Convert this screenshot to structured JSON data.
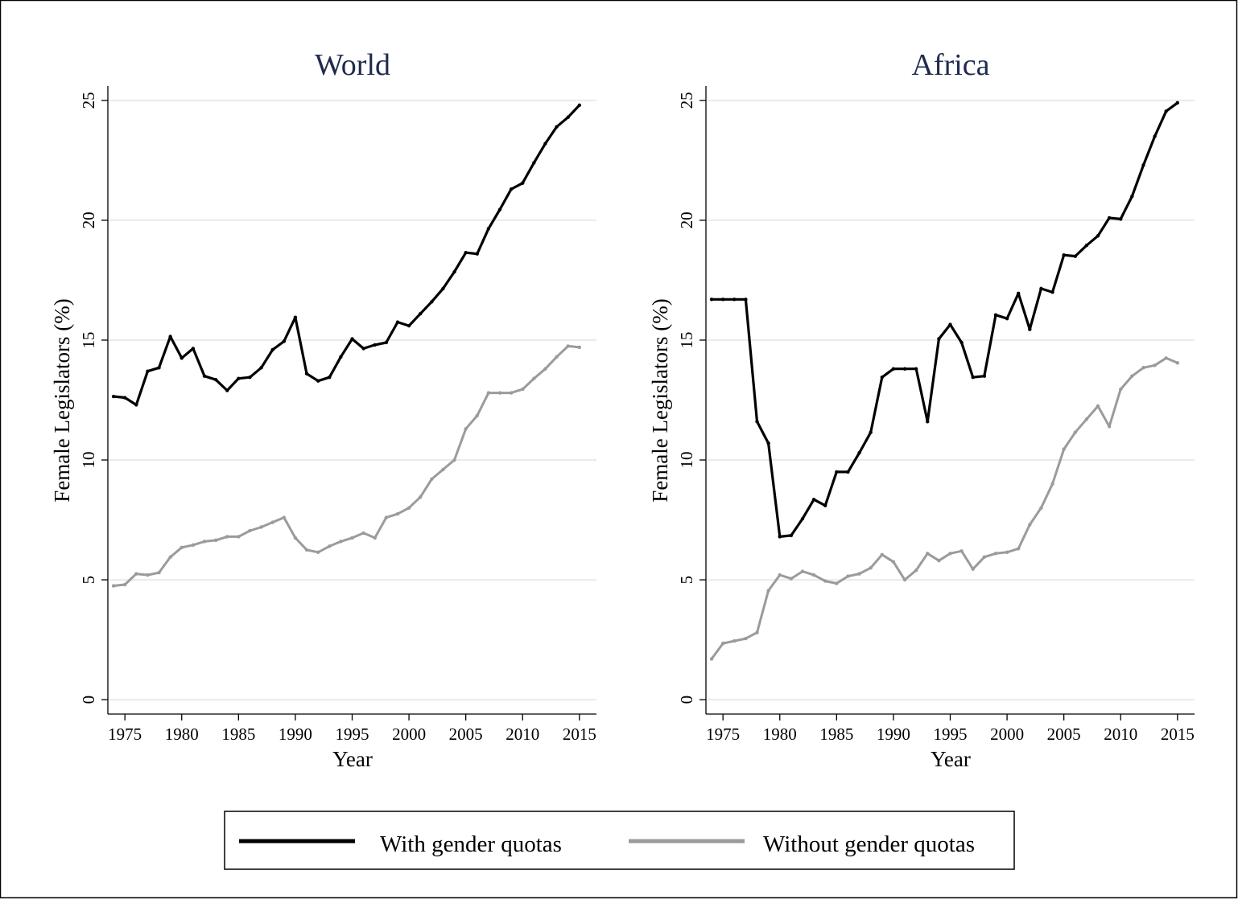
{
  "colors": {
    "with_quotas": "#000000",
    "without_quotas": "#9b9b9b",
    "gridline": "#e4ecef",
    "title": "#1f2a4d"
  },
  "legend": {
    "items": [
      {
        "label": "With gender quotas",
        "color": "#000000"
      },
      {
        "label": "Without gender quotas",
        "color": "#9b9b9b"
      }
    ]
  },
  "chart_data": [
    {
      "type": "line",
      "title": "World",
      "xlabel": "Year",
      "ylabel": "Female Legislators (%)",
      "xlim": [
        1973.5,
        2016.5
      ],
      "ylim": [
        -0.6,
        25.6
      ],
      "xticks": [
        1975,
        1980,
        1985,
        1990,
        1995,
        2000,
        2005,
        2010,
        2015
      ],
      "yticks": [
        0,
        5,
        10,
        15,
        20,
        25
      ],
      "grid": true,
      "x": [
        1974,
        1975,
        1976,
        1977,
        1978,
        1979,
        1980,
        1981,
        1982,
        1983,
        1984,
        1985,
        1986,
        1987,
        1988,
        1989,
        1990,
        1991,
        1992,
        1993,
        1994,
        1995,
        1996,
        1997,
        1998,
        1999,
        2000,
        2001,
        2002,
        2003,
        2004,
        2005,
        2006,
        2007,
        2008,
        2009,
        2010,
        2011,
        2012,
        2013,
        2014,
        2015
      ],
      "series": [
        {
          "name": "With gender quotas",
          "values": [
            12.65,
            12.6,
            12.3,
            13.7,
            13.85,
            15.15,
            14.25,
            14.65,
            13.5,
            13.35,
            12.9,
            13.4,
            13.45,
            13.85,
            14.6,
            14.95,
            15.95,
            13.6,
            13.3,
            13.45,
            14.3,
            15.05,
            14.65,
            14.8,
            14.9,
            15.75,
            15.6,
            16.1,
            16.6,
            17.15,
            17.85,
            18.65,
            18.6,
            19.65,
            20.45,
            21.3,
            21.55,
            22.4,
            23.2,
            23.9,
            24.3,
            24.8
          ]
        },
        {
          "name": "Without gender quotas",
          "values": [
            4.75,
            4.8,
            5.25,
            5.2,
            5.3,
            5.95,
            6.35,
            6.45,
            6.6,
            6.65,
            6.8,
            6.8,
            7.05,
            7.2,
            7.4,
            7.6,
            6.75,
            6.25,
            6.15,
            6.4,
            6.6,
            6.75,
            6.95,
            6.75,
            7.6,
            7.75,
            8.0,
            8.45,
            9.2,
            9.6,
            10.0,
            11.3,
            11.85,
            12.8,
            12.8,
            12.8,
            12.95,
            13.4,
            13.8,
            14.3,
            14.75,
            14.7
          ]
        }
      ]
    },
    {
      "type": "line",
      "title": "Africa",
      "xlabel": "Year",
      "ylabel": "Female Legislators (%)",
      "xlim": [
        1973.5,
        2016.5
      ],
      "ylim": [
        -0.6,
        25.6
      ],
      "xticks": [
        1975,
        1980,
        1985,
        1990,
        1995,
        2000,
        2005,
        2010,
        2015
      ],
      "yticks": [
        0,
        5,
        10,
        15,
        20,
        25
      ],
      "grid": true,
      "x": [
        1974,
        1975,
        1976,
        1977,
        1978,
        1979,
        1980,
        1981,
        1982,
        1983,
        1984,
        1985,
        1986,
        1987,
        1988,
        1989,
        1990,
        1991,
        1992,
        1993,
        1994,
        1995,
        1996,
        1997,
        1998,
        1999,
        2000,
        2001,
        2002,
        2003,
        2004,
        2005,
        2006,
        2007,
        2008,
        2009,
        2010,
        2011,
        2012,
        2013,
        2014,
        2015
      ],
      "series": [
        {
          "name": "With gender quotas",
          "values": [
            16.7,
            16.7,
            16.7,
            16.7,
            11.6,
            10.7,
            6.8,
            6.85,
            7.55,
            8.35,
            8.1,
            9.5,
            9.5,
            10.3,
            11.15,
            13.45,
            13.8,
            13.8,
            13.8,
            11.6,
            15.05,
            15.65,
            14.9,
            13.45,
            13.5,
            16.05,
            15.9,
            16.95,
            15.45,
            17.15,
            17.0,
            18.55,
            18.5,
            18.95,
            19.35,
            20.1,
            20.05,
            21.0,
            22.3,
            23.5,
            24.55,
            24.9
          ]
        },
        {
          "name": "Without gender quotas",
          "values": [
            1.7,
            2.35,
            2.45,
            2.55,
            2.8,
            4.55,
            5.2,
            5.05,
            5.35,
            5.2,
            4.95,
            4.85,
            5.15,
            5.25,
            5.5,
            6.05,
            5.75,
            5.0,
            5.4,
            6.1,
            5.8,
            6.1,
            6.2,
            5.45,
            5.95,
            6.1,
            6.15,
            6.3,
            7.3,
            8.0,
            9.0,
            10.45,
            11.15,
            11.7,
            12.25,
            11.4,
            12.95,
            13.5,
            13.85,
            13.95,
            14.25,
            14.05
          ]
        }
      ]
    }
  ]
}
